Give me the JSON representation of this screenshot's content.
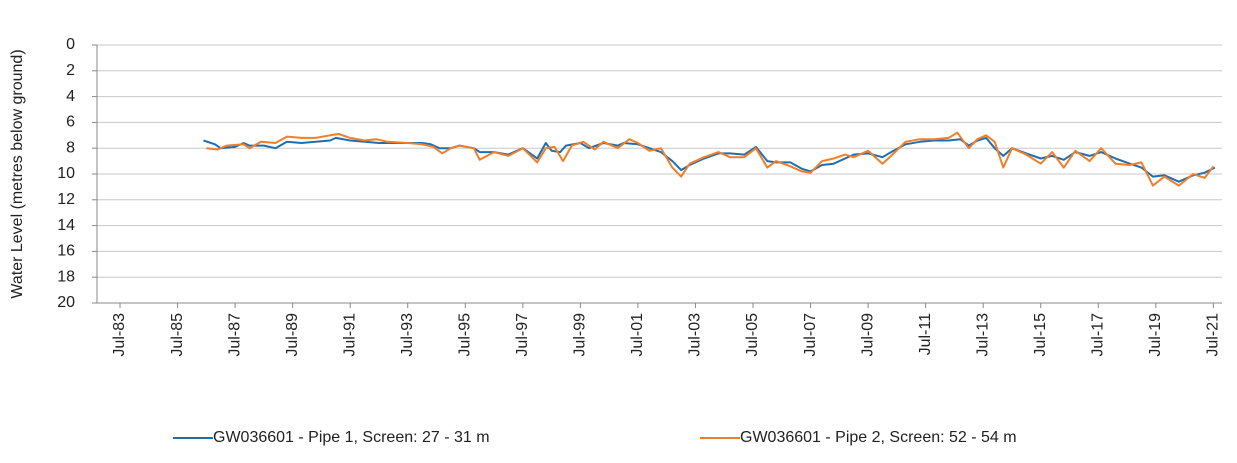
{
  "chart_data": {
    "type": "line",
    "y_label": "Water Level (metres below ground)",
    "ylim": [
      0,
      20
    ],
    "yticks": [
      0,
      2,
      4,
      6,
      8,
      10,
      12,
      14,
      16,
      18,
      20
    ],
    "y_inverted": true,
    "grid": true,
    "xlim": [
      1982.7,
      2021.8
    ],
    "xticks": [
      {
        "value": 1983.5,
        "label": "Jul-83"
      },
      {
        "value": 1985.5,
        "label": "Jul-85"
      },
      {
        "value": 1987.5,
        "label": "Jul-87"
      },
      {
        "value": 1989.5,
        "label": "Jul-89"
      },
      {
        "value": 1991.5,
        "label": "Jul-91"
      },
      {
        "value": 1993.5,
        "label": "Jul-93"
      },
      {
        "value": 1995.5,
        "label": "Jul-95"
      },
      {
        "value": 1997.5,
        "label": "Jul-97"
      },
      {
        "value": 1999.5,
        "label": "Jul-99"
      },
      {
        "value": 2001.5,
        "label": "Jul-01"
      },
      {
        "value": 2003.5,
        "label": "Jul-03"
      },
      {
        "value": 2005.5,
        "label": "Jul-05"
      },
      {
        "value": 2007.5,
        "label": "Jul-07"
      },
      {
        "value": 2009.5,
        "label": "Jul-09"
      },
      {
        "value": 2011.5,
        "label": "Jul-11"
      },
      {
        "value": 2013.5,
        "label": "Jul-13"
      },
      {
        "value": 2015.5,
        "label": "Jul-15"
      },
      {
        "value": 2017.5,
        "label": "Jul-17"
      },
      {
        "value": 2019.5,
        "label": "Jul-19"
      },
      {
        "value": 2021.5,
        "label": "Jul-21"
      }
    ],
    "legend": "bottom",
    "series": [
      {
        "name": "GW036601 - Pipe 1, Screen: 27 - 31 m",
        "color": "#1f6fb0",
        "x": [
          1986.4,
          1986.8,
          1987.0,
          1987.5,
          1987.8,
          1988.0,
          1988.5,
          1988.9,
          1989.3,
          1989.8,
          1990.3,
          1990.8,
          1991.0,
          1991.5,
          1992.0,
          1992.5,
          1993.0,
          1993.5,
          1994.0,
          1994.3,
          1994.6,
          1995.0,
          1995.3,
          1995.8,
          1996.0,
          1996.5,
          1997.0,
          1997.5,
          1998.0,
          1998.3,
          1998.5,
          1998.8,
          1999.0,
          1999.5,
          1999.8,
          2000.3,
          2000.8,
          2001.0,
          2001.5,
          2001.9,
          2002.3,
          2002.7,
          2003.0,
          2003.3,
          2003.8,
          2004.3,
          2004.7,
          2005.2,
          2005.6,
          2006.0,
          2006.3,
          2006.8,
          2007.2,
          2007.5,
          2007.9,
          2008.3,
          2008.7,
          2009.0,
          2009.5,
          2010.0,
          2010.3,
          2010.8,
          2011.3,
          2011.8,
          2012.3,
          2012.7,
          2013.0,
          2013.3,
          2013.6,
          2013.9,
          2014.2,
          2014.5,
          2015.0,
          2015.5,
          2015.9,
          2016.3,
          2016.7,
          2017.2,
          2017.6,
          2018.1,
          2018.6,
          2019.0,
          2019.4,
          2019.8,
          2020.3,
          2020.8,
          2021.2,
          2021.55
        ],
        "values": [
          7.4,
          7.7,
          8.0,
          7.9,
          7.6,
          7.8,
          7.8,
          8.0,
          7.5,
          7.6,
          7.5,
          7.4,
          7.2,
          7.4,
          7.5,
          7.6,
          7.6,
          7.6,
          7.6,
          7.7,
          8.0,
          8.0,
          7.8,
          8.0,
          8.3,
          8.3,
          8.5,
          8.0,
          8.8,
          7.6,
          8.2,
          8.3,
          7.8,
          7.6,
          8.0,
          7.6,
          7.8,
          7.6,
          7.7,
          8.0,
          8.3,
          9.0,
          9.7,
          9.3,
          8.8,
          8.4,
          8.4,
          8.5,
          7.9,
          9.0,
          9.1,
          9.1,
          9.6,
          9.8,
          9.3,
          9.2,
          8.8,
          8.5,
          8.4,
          8.7,
          8.3,
          7.7,
          7.5,
          7.4,
          7.4,
          7.3,
          7.8,
          7.4,
          7.2,
          8.0,
          8.6,
          8.0,
          8.4,
          8.8,
          8.6,
          8.9,
          8.3,
          8.6,
          8.3,
          8.8,
          9.2,
          9.5,
          10.2,
          10.1,
          10.6,
          10.1,
          9.9,
          9.5
        ]
      },
      {
        "name": "GW036601 - Pipe 2, Screen: 52 - 54 m",
        "color": "#f07f2a",
        "x": [
          1986.5,
          1986.9,
          1987.2,
          1987.8,
          1988.0,
          1988.4,
          1988.9,
          1989.3,
          1989.8,
          1990.3,
          1990.8,
          1991.1,
          1991.5,
          1992.0,
          1992.4,
          1992.8,
          1993.5,
          1994.0,
          1994.4,
          1994.7,
          1995.0,
          1995.3,
          1995.8,
          1996.0,
          1996.5,
          1997.0,
          1997.5,
          1998.0,
          1998.3,
          1998.6,
          1998.9,
          1999.2,
          1999.6,
          2000.0,
          2000.3,
          2000.8,
          2001.2,
          2001.5,
          2001.9,
          2002.3,
          2002.7,
          2003.0,
          2003.3,
          2003.8,
          2004.3,
          2004.7,
          2005.2,
          2005.6,
          2006.0,
          2006.3,
          2006.8,
          2007.2,
          2007.5,
          2007.9,
          2008.3,
          2008.7,
          2009.0,
          2009.5,
          2010.0,
          2010.3,
          2010.8,
          2011.3,
          2011.8,
          2012.3,
          2012.6,
          2013.0,
          2013.3,
          2013.6,
          2013.9,
          2014.2,
          2014.5,
          2015.0,
          2015.5,
          2015.9,
          2016.3,
          2016.7,
          2017.2,
          2017.6,
          2018.1,
          2018.6,
          2019.0,
          2019.4,
          2019.8,
          2020.3,
          2020.8,
          2021.2,
          2021.5
        ],
        "values": [
          8.0,
          8.1,
          7.8,
          7.7,
          8.0,
          7.5,
          7.6,
          7.1,
          7.2,
          7.2,
          7.0,
          6.9,
          7.2,
          7.4,
          7.3,
          7.5,
          7.6,
          7.7,
          7.9,
          8.4,
          8.0,
          7.8,
          8.0,
          8.9,
          8.3,
          8.6,
          8.0,
          9.1,
          8.0,
          7.9,
          9.0,
          7.8,
          7.5,
          8.1,
          7.5,
          8.0,
          7.3,
          7.6,
          8.2,
          8.0,
          9.5,
          10.2,
          9.2,
          8.7,
          8.3,
          8.7,
          8.7,
          8.0,
          9.5,
          9.0,
          9.4,
          9.8,
          9.9,
          9.0,
          8.8,
          8.5,
          8.7,
          8.2,
          9.2,
          8.6,
          7.5,
          7.3,
          7.3,
          7.2,
          6.8,
          8.0,
          7.3,
          7.0,
          7.5,
          9.5,
          8.0,
          8.5,
          9.2,
          8.3,
          9.5,
          8.2,
          9.0,
          8.0,
          9.2,
          9.3,
          9.1,
          10.9,
          10.2,
          10.9,
          10.0,
          10.3,
          9.4
        ]
      }
    ]
  }
}
